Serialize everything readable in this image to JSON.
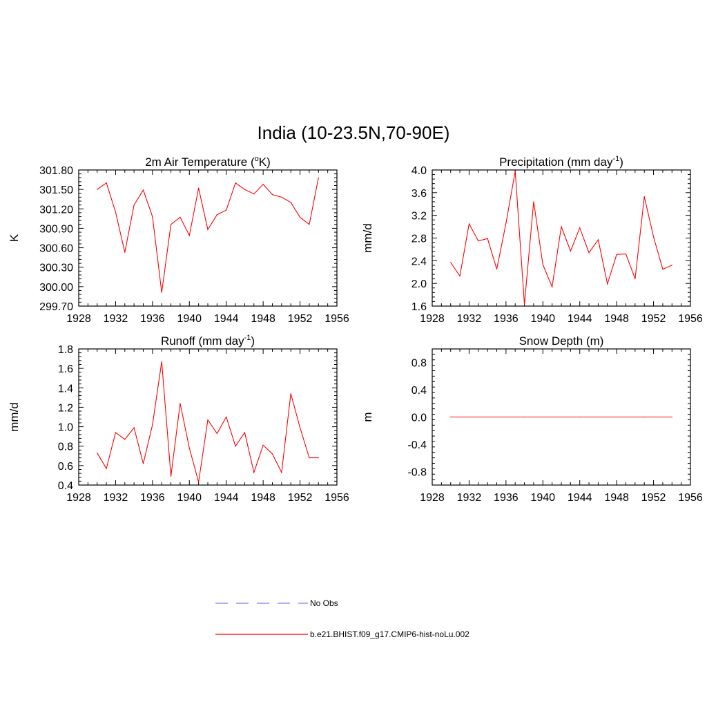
{
  "title": "India (10-23.5N,70-90E)",
  "chart_data": [
    {
      "type": "line",
      "title": "2m Air Temperature (",
      "title_sup": "o",
      "title_suffix": "K)",
      "ylabel": "K",
      "xlim": [
        1928,
        1956
      ],
      "ylim": [
        299.7,
        301.8
      ],
      "xticks": [
        "1928",
        "1932",
        "1936",
        "1940",
        "1944",
        "1948",
        "1952",
        "1956"
      ],
      "yticks": [
        "299.70",
        "300.00",
        "300.30",
        "300.60",
        "300.90",
        "301.20",
        "301.50",
        "301.80"
      ],
      "ytick_values": [
        299.7,
        300.0,
        300.3,
        300.6,
        300.9,
        301.2,
        301.5,
        301.8
      ],
      "series": [
        {
          "name": "b.e21.BHIST.f09_g17.CMIP6-hist-noLu.002",
          "x": [
            1930,
            1931,
            1932,
            1933,
            1934,
            1935,
            1936,
            1937,
            1938,
            1939,
            1940,
            1941,
            1942,
            1943,
            1944,
            1945,
            1946,
            1947,
            1948,
            1949,
            1950,
            1951,
            1952,
            1953,
            1954
          ],
          "values": [
            301.5,
            301.6,
            301.15,
            300.53,
            301.26,
            301.49,
            301.08,
            299.91,
            300.96,
            301.07,
            300.79,
            301.52,
            300.88,
            301.11,
            301.18,
            301.6,
            301.5,
            301.43,
            301.58,
            301.42,
            301.38,
            301.3,
            301.07,
            300.96,
            301.68
          ]
        }
      ]
    },
    {
      "type": "line",
      "title": "Precipitation (mm day",
      "title_sup": "-1",
      "title_suffix": ")",
      "ylabel": "mm/d",
      "xlim": [
        1928,
        1956
      ],
      "ylim": [
        1.6,
        4.0
      ],
      "xticks": [
        "1928",
        "1932",
        "1936",
        "1940",
        "1944",
        "1948",
        "1952",
        "1956"
      ],
      "yticks": [
        "1.6",
        "2.0",
        "2.4",
        "2.8",
        "3.2",
        "3.6",
        "4.0"
      ],
      "ytick_values": [
        1.6,
        2.0,
        2.4,
        2.8,
        3.2,
        3.6,
        4.0
      ],
      "series": [
        {
          "name": "b.e21.BHIST.f09_g17.CMIP6-hist-noLu.002",
          "x": [
            1930,
            1931,
            1932,
            1933,
            1934,
            1935,
            1936,
            1937,
            1938,
            1939,
            1940,
            1941,
            1942,
            1943,
            1944,
            1945,
            1946,
            1947,
            1948,
            1949,
            1950,
            1951,
            1952,
            1953,
            1954
          ],
          "values": [
            2.37,
            2.13,
            3.05,
            2.75,
            2.79,
            2.25,
            3.06,
            3.98,
            1.63,
            3.44,
            2.33,
            1.94,
            3.0,
            2.57,
            2.98,
            2.54,
            2.77,
            1.99,
            2.51,
            2.52,
            2.08,
            3.53,
            2.82,
            2.25,
            2.32
          ]
        }
      ]
    },
    {
      "type": "line",
      "title": "Runoff (mm day",
      "title_sup": "-1",
      "title_suffix": ")",
      "ylabel": "mm/d",
      "xlim": [
        1928,
        1956
      ],
      "ylim": [
        0.4,
        1.8
      ],
      "xticks": [
        "1928",
        "1932",
        "1936",
        "1940",
        "1944",
        "1948",
        "1952",
        "1956"
      ],
      "yticks": [
        "0.4",
        "0.6",
        "0.8",
        "1.0",
        "1.2",
        "1.4",
        "1.6",
        "1.8"
      ],
      "ytick_values": [
        0.4,
        0.6,
        0.8,
        1.0,
        1.2,
        1.4,
        1.6,
        1.8
      ],
      "series": [
        {
          "name": "b.e21.BHIST.f09_g17.CMIP6-hist-noLu.002",
          "x": [
            1930,
            1931,
            1932,
            1933,
            1934,
            1935,
            1936,
            1937,
            1938,
            1939,
            1940,
            1941,
            1942,
            1943,
            1944,
            1945,
            1946,
            1947,
            1948,
            1949,
            1950,
            1951,
            1952,
            1953,
            1954
          ],
          "values": [
            0.73,
            0.57,
            0.94,
            0.87,
            0.99,
            0.62,
            1.02,
            1.67,
            0.49,
            1.24,
            0.78,
            0.43,
            1.07,
            0.93,
            1.1,
            0.8,
            0.94,
            0.53,
            0.81,
            0.72,
            0.53,
            1.34,
            0.99,
            0.68,
            0.68
          ]
        }
      ]
    },
    {
      "type": "line",
      "title": "Snow Depth (m)",
      "title_sup": "",
      "title_suffix": "",
      "ylabel": "m",
      "xlim": [
        1928,
        1956
      ],
      "ylim": [
        -1.0,
        1.0
      ],
      "xticks": [
        "1928",
        "1932",
        "1936",
        "1940",
        "1944",
        "1948",
        "1952",
        "1956"
      ],
      "yticks": [
        "-0.8",
        "-0.4",
        "0.0",
        "0.4",
        "0.8"
      ],
      "ytick_values": [
        -0.8,
        -0.4,
        0.0,
        0.4,
        0.8
      ],
      "series": [
        {
          "name": "b.e21.BHIST.f09_g17.CMIP6-hist-noLu.002",
          "x": [
            1930,
            1931,
            1932,
            1933,
            1934,
            1935,
            1936,
            1937,
            1938,
            1939,
            1940,
            1941,
            1942,
            1943,
            1944,
            1945,
            1946,
            1947,
            1948,
            1949,
            1950,
            1951,
            1952,
            1953,
            1954
          ],
          "values": [
            0,
            0,
            0,
            0,
            0,
            0,
            0,
            0,
            0,
            0,
            0,
            0,
            0,
            0,
            0,
            0,
            0,
            0,
            0,
            0,
            0,
            0,
            0,
            0,
            0
          ]
        }
      ]
    }
  ],
  "legend": {
    "position": "bottom-center",
    "entries": [
      {
        "label": "No Obs",
        "color": "#8080ff",
        "style": "dashed"
      },
      {
        "label": "b.e21.BHIST.f09_g17.CMIP6-hist-noLu.002",
        "color": "#ff0000",
        "style": "solid"
      }
    ]
  },
  "colors": {
    "model_line": "#ff0000",
    "obs_line": "#8080ff",
    "axis": "#000000"
  }
}
